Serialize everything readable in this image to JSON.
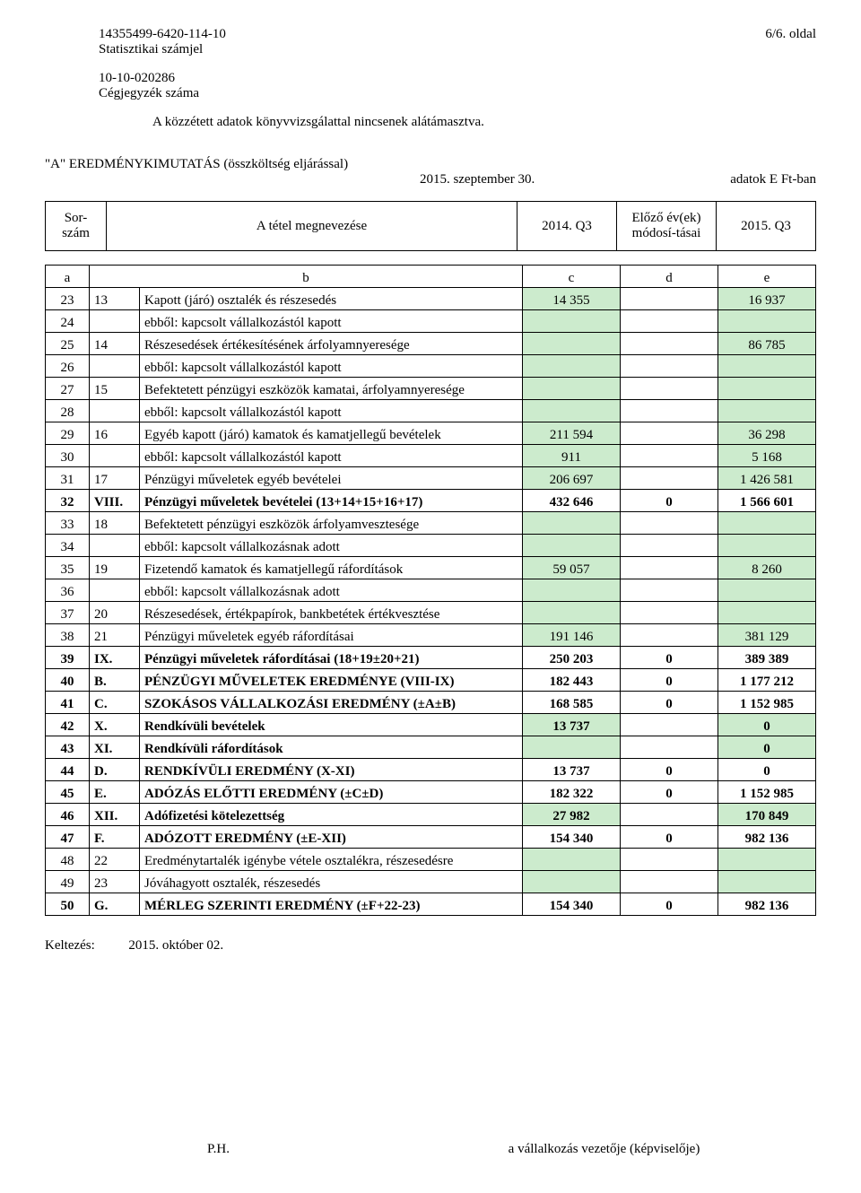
{
  "header": {
    "stat_id": "14355499-6420-114-10",
    "stat_label": "Statisztikai számjel",
    "page_label": "6/6. oldal",
    "reg_id": "10-10-020286",
    "reg_label": "Cégjegyzék száma",
    "audit_note": "A közzétett adatok könyvvizsgálattal nincsenek alátámasztva."
  },
  "title": {
    "main": "\"A\" EREDMÉNYKIMUTATÁS (összköltség eljárással)",
    "date": "2015. szeptember 30.",
    "unit": "adatok E Ft-ban"
  },
  "thead": {
    "sor": "Sor-szám",
    "meg": "A tétel megnevezése",
    "c": "2014. Q3",
    "d": "Előző év(ek) módosí-tásai",
    "e": "2015. Q3",
    "labels": {
      "a": "a",
      "b": "b",
      "c": "c",
      "d": "d",
      "e": "e"
    }
  },
  "rows": [
    {
      "a": "23",
      "b1": "13",
      "b2": "Kapott (járó) osztalék és részesedés",
      "c": "14 355",
      "c_green": true,
      "d": "",
      "e": "16 937",
      "e_green": true
    },
    {
      "a": "24",
      "b1": "",
      "b2": "ebből: kapcsolt vállalkozástól kapott",
      "c": "",
      "c_green": true,
      "d": "",
      "e": "",
      "e_green": true
    },
    {
      "a": "25",
      "b1": "14",
      "b2": "Részesedések értékesítésének árfolyamnyeresége",
      "c": "",
      "c_green": true,
      "d": "",
      "e": "86 785",
      "e_green": true
    },
    {
      "a": "26",
      "b1": "",
      "b2": "ebből: kapcsolt vállalkozástól kapott",
      "c": "",
      "c_green": true,
      "d": "",
      "e": "",
      "e_green": true
    },
    {
      "a": "27",
      "b1": "15",
      "b2": "Befektetett pénzügyi eszközök kamatai, árfolyamnyeresége",
      "c": "",
      "c_green": true,
      "d": "",
      "e": "",
      "e_green": true
    },
    {
      "a": "28",
      "b1": "",
      "b2": "ebből: kapcsolt vállalkozástól kapott",
      "c": "",
      "c_green": true,
      "d": "",
      "e": "",
      "e_green": true
    },
    {
      "a": "29",
      "b1": "16",
      "b2": "Egyéb kapott (járó) kamatok és kamatjellegű bevételek",
      "c": "211 594",
      "c_green": true,
      "d": "",
      "e": "36 298",
      "e_green": true
    },
    {
      "a": "30",
      "b1": "",
      "b2": "ebből: kapcsolt vállalkozástól kapott",
      "c": "911",
      "c_green": true,
      "d": "",
      "e": "5 168",
      "e_green": true
    },
    {
      "a": "31",
      "b1": "17",
      "b2": "Pénzügyi műveletek egyéb bevételei",
      "c": "206 697",
      "c_green": true,
      "d": "",
      "e": "1 426 581",
      "e_green": true
    },
    {
      "a": "32",
      "b1": "VIII.",
      "b2": "Pénzügyi műveletek bevételei (13+14+15+16+17)",
      "c": "432 646",
      "d": "0",
      "e": "1 566 601",
      "bold": true
    },
    {
      "a": "33",
      "b1": "18",
      "b2": "Befektetett pénzügyi eszközök árfolyamvesztesége",
      "c": "",
      "c_green": true,
      "d": "",
      "e": "",
      "e_green": true
    },
    {
      "a": "34",
      "b1": "",
      "b2": "ebből: kapcsolt vállalkozásnak adott",
      "c": "",
      "c_green": true,
      "d": "",
      "e": "",
      "e_green": true
    },
    {
      "a": "35",
      "b1": "19",
      "b2": "Fizetendő kamatok és kamatjellegű ráfordítások",
      "c": "59 057",
      "c_green": true,
      "d": "",
      "e": "8 260",
      "e_green": true
    },
    {
      "a": "36",
      "b1": "",
      "b2": "ebből: kapcsolt vállalkozásnak adott",
      "c": "",
      "c_green": true,
      "d": "",
      "e": "",
      "e_green": true
    },
    {
      "a": "37",
      "b1": "20",
      "b2": "Részesedések, értékpapírok, bankbetétek értékvesztése",
      "c": "",
      "c_green": true,
      "d": "",
      "e": "",
      "e_green": true
    },
    {
      "a": "38",
      "b1": "21",
      "b2": "Pénzügyi műveletek egyéb ráfordításai",
      "c": "191 146",
      "c_green": true,
      "d": "",
      "e": "381 129",
      "e_green": true
    },
    {
      "a": "39",
      "b1": "IX.",
      "b2": "Pénzügyi műveletek ráfordításai (18+19±20+21)",
      "c": "250 203",
      "d": "0",
      "e": "389 389",
      "bold": true
    },
    {
      "a": "40",
      "b1": "B.",
      "b2": "PÉNZÜGYI MŰVELETEK EREDMÉNYE (VIII-IX)",
      "c": "182 443",
      "d": "0",
      "e": "1 177 212",
      "bold": true
    },
    {
      "a": "41",
      "b1": "C.",
      "b2": "SZOKÁSOS VÁLLALKOZÁSI EREDMÉNY (±A±B)",
      "c": "168 585",
      "d": "0",
      "e": "1 152 985",
      "bold": true
    },
    {
      "a": "42",
      "b1": "X.",
      "b2": "Rendkívüli bevételek",
      "c": "13 737",
      "c_green": true,
      "d": "",
      "e": "0",
      "e_green": true,
      "bold": true
    },
    {
      "a": "43",
      "b1": "XI.",
      "b2": "Rendkívüli ráfordítások",
      "c": "",
      "c_green": true,
      "d": "",
      "e": "0",
      "e_green": true,
      "bold": true
    },
    {
      "a": "44",
      "b1": "D.",
      "b2": "RENDKÍVÜLI EREDMÉNY (X-XI)",
      "c": "13 737",
      "d": "0",
      "e": "0",
      "bold": true
    },
    {
      "a": "45",
      "b1": "E.",
      "b2": "ADÓZÁS ELŐTTI EREDMÉNY (±C±D)",
      "c": "182 322",
      "d": "0",
      "e": "1 152 985",
      "bold": true
    },
    {
      "a": "46",
      "b1": "XII.",
      "b2": "Adófizetési kötelezettség",
      "c": "27 982",
      "c_green": true,
      "d": "",
      "e": "170 849",
      "e_green": true,
      "bold": true
    },
    {
      "a": "47",
      "b1": "F.",
      "b2": "ADÓZOTT EREDMÉNY (±E-XII)",
      "c": "154 340",
      "d": "0",
      "e": "982 136",
      "bold": true
    },
    {
      "a": "48",
      "b1": "22",
      "b2": "Eredménytartalék igénybe vétele osztalékra, részesedésre",
      "c": "",
      "c_green": true,
      "d": "",
      "e": "",
      "e_green": true
    },
    {
      "a": "49",
      "b1": "23",
      "b2": "Jóváhagyott osztalék, részesedés",
      "c": "",
      "c_green": true,
      "d": "",
      "e": "",
      "e_green": true
    },
    {
      "a": "50",
      "b1": "G.",
      "b2": "MÉRLEG SZERINTI EREDMÉNY (±F+22-23)",
      "c": "154 340",
      "d": "0",
      "e": "982 136",
      "bold": true
    }
  ],
  "footer": {
    "keltezes_label": "Keltezés:",
    "keltezes_date": "2015. október 02.",
    "ph": "P.H.",
    "sign": "a vállalkozás vezetője (képviselője)"
  },
  "style": {
    "green_bg": "#ccebcd",
    "border_color": "#000000",
    "font": "Times New Roman"
  }
}
